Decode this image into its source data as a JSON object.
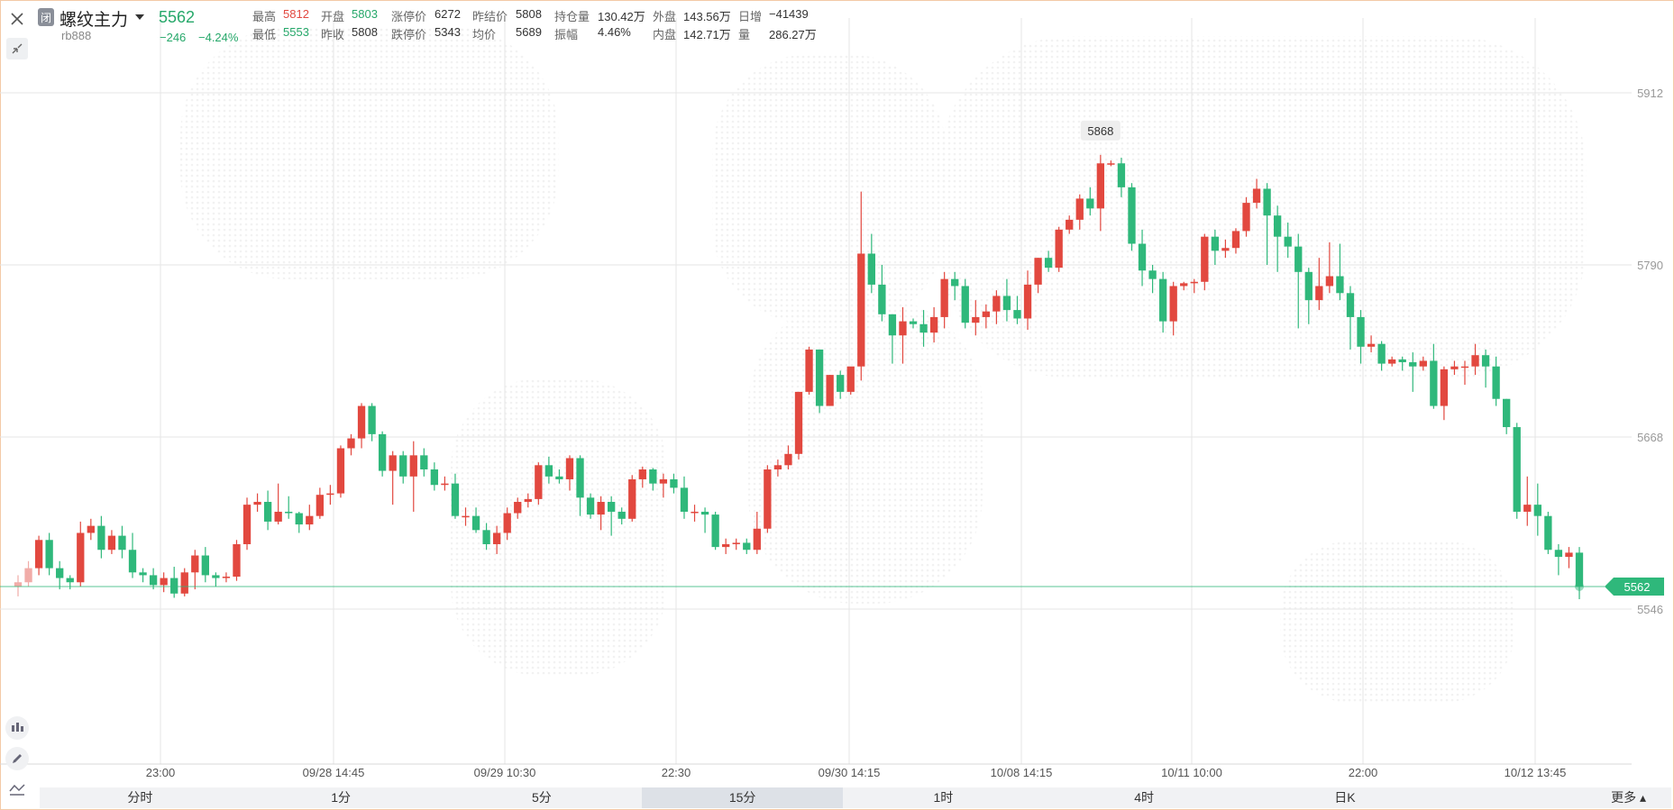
{
  "header": {
    "badge": "闭",
    "title": "螺纹主力",
    "code": "rb888",
    "price": "5562",
    "change": "−246",
    "change_pct": "−4.24%",
    "stats": [
      {
        "label": "最高",
        "value": "5812",
        "tone": "red"
      },
      {
        "label": "开盘",
        "value": "5803",
        "tone": "green"
      },
      {
        "label": "涨停价",
        "value": "6272",
        "tone": "normal"
      },
      {
        "label": "昨结价",
        "value": "5808",
        "tone": "normal"
      },
      {
        "label": "持仓量",
        "value": "130.42万",
        "tone": "normal"
      },
      {
        "label": "外盘",
        "value": "143.56万",
        "tone": "normal"
      },
      {
        "label": "日增",
        "value": "−41439",
        "tone": "normal"
      },
      {
        "label": "最低",
        "value": "5553",
        "tone": "green"
      },
      {
        "label": "昨收",
        "value": "5808",
        "tone": "normal"
      },
      {
        "label": "跌停价",
        "value": "5343",
        "tone": "normal"
      },
      {
        "label": "均价",
        "value": "5689",
        "tone": "normal"
      },
      {
        "label": "振幅",
        "value": "4.46%",
        "tone": "normal"
      },
      {
        "label": "内盘",
        "value": "142.71万",
        "tone": "normal"
      },
      {
        "label": "量",
        "value": "286.27万",
        "tone": "normal"
      }
    ]
  },
  "colors": {
    "up": "#e2483f",
    "down": "#2fb87b",
    "grid": "#e6e6e6",
    "axis_text": "#999999",
    "last_price": "#2fb87b"
  },
  "chart_data": {
    "type": "candlestick",
    "y_ticks": [
      5912,
      5790,
      5668,
      5546
    ],
    "x_ticks": [
      "23:00",
      "09/28 14:45",
      "09/29 10:30",
      "22:30",
      "09/30 14:15",
      "10/08 14:15",
      "10/11 10:00",
      "22:00",
      "10/12 13:45"
    ],
    "high_marker": "5868",
    "last_price": "5562",
    "candles": [
      [
        5562,
        5565,
        5555,
        5570
      ],
      [
        5565,
        5575,
        5562,
        5580
      ],
      [
        5575,
        5595,
        5570,
        5598
      ],
      [
        5595,
        5575,
        5570,
        5600
      ],
      [
        5575,
        5568,
        5560,
        5580
      ],
      [
        5568,
        5565,
        5560,
        5570
      ],
      [
        5565,
        5600,
        5562,
        5608
      ],
      [
        5600,
        5605,
        5595,
        5610
      ],
      [
        5605,
        5588,
        5582,
        5612
      ],
      [
        5588,
        5598,
        5585,
        5602
      ],
      [
        5598,
        5588,
        5582,
        5605
      ],
      [
        5588,
        5572,
        5568,
        5600
      ],
      [
        5572,
        5570,
        5565,
        5575
      ],
      [
        5570,
        5563,
        5560,
        5575
      ],
      [
        5563,
        5568,
        5558,
        5572
      ],
      [
        5568,
        5557,
        5554,
        5576
      ],
      [
        5557,
        5572,
        5555,
        5575
      ],
      [
        5572,
        5584,
        5560,
        5588
      ],
      [
        5584,
        5570,
        5565,
        5590
      ],
      [
        5570,
        5568,
        5562,
        5572
      ],
      [
        5568,
        5569,
        5565,
        5572
      ],
      [
        5569,
        5592,
        5566,
        5595
      ],
      [
        5592,
        5620,
        5588,
        5625
      ],
      [
        5620,
        5622,
        5615,
        5628
      ],
      [
        5622,
        5608,
        5602,
        5630
      ],
      [
        5608,
        5615,
        5606,
        5635
      ],
      [
        5615,
        5614,
        5610,
        5626
      ],
      [
        5614,
        5606,
        5600,
        5615
      ],
      [
        5606,
        5612,
        5602,
        5620
      ],
      [
        5612,
        5627,
        5610,
        5632
      ],
      [
        5627,
        5628,
        5620,
        5634
      ],
      [
        5628,
        5660,
        5625,
        5662
      ],
      [
        5660,
        5667,
        5655,
        5670
      ],
      [
        5667,
        5690,
        5660,
        5692
      ],
      [
        5690,
        5670,
        5665,
        5692
      ],
      [
        5670,
        5644,
        5640,
        5672
      ],
      [
        5644,
        5655,
        5620,
        5658
      ],
      [
        5655,
        5640,
        5635,
        5658
      ],
      [
        5640,
        5655,
        5615,
        5665
      ],
      [
        5655,
        5645,
        5640,
        5660
      ],
      [
        5645,
        5634,
        5630,
        5650
      ],
      [
        5634,
        5635,
        5630,
        5640
      ],
      [
        5635,
        5612,
        5610,
        5642
      ],
      [
        5612,
        5612,
        5605,
        5618
      ],
      [
        5612,
        5602,
        5600,
        5618
      ],
      [
        5602,
        5592,
        5588,
        5607
      ],
      [
        5592,
        5600,
        5585,
        5605
      ],
      [
        5600,
        5614,
        5595,
        5618
      ],
      [
        5614,
        5622,
        5610,
        5625
      ],
      [
        5622,
        5624,
        5618,
        5628
      ],
      [
        5624,
        5648,
        5620,
        5650
      ],
      [
        5648,
        5640,
        5635,
        5654
      ],
      [
        5640,
        5638,
        5635,
        5645
      ],
      [
        5638,
        5653,
        5630,
        5655
      ],
      [
        5653,
        5625,
        5612,
        5655
      ],
      [
        5625,
        5613,
        5610,
        5628
      ],
      [
        5613,
        5622,
        5602,
        5626
      ],
      [
        5622,
        5615,
        5598,
        5626
      ],
      [
        5615,
        5610,
        5606,
        5618
      ],
      [
        5610,
        5638,
        5608,
        5641
      ],
      [
        5638,
        5645,
        5632,
        5647
      ],
      [
        5645,
        5635,
        5630,
        5646
      ],
      [
        5635,
        5638,
        5625,
        5642
      ],
      [
        5638,
        5632,
        5628,
        5642
      ],
      [
        5632,
        5615,
        5610,
        5640
      ],
      [
        5615,
        5615,
        5608,
        5620
      ],
      [
        5615,
        5613,
        5600,
        5618
      ],
      [
        5613,
        5590,
        5588,
        5615
      ],
      [
        5590,
        5592,
        5585,
        5596
      ],
      [
        5592,
        5593,
        5588,
        5596
      ],
      [
        5593,
        5588,
        5585,
        5596
      ],
      [
        5588,
        5603,
        5585,
        5615
      ],
      [
        5603,
        5645,
        5600,
        5648
      ],
      [
        5645,
        5648,
        5640,
        5652
      ],
      [
        5648,
        5656,
        5645,
        5662
      ],
      [
        5656,
        5700,
        5652,
        5700
      ],
      [
        5700,
        5730,
        5698,
        5732
      ],
      [
        5730,
        5690,
        5685,
        5730
      ],
      [
        5690,
        5712,
        5690,
        5712
      ],
      [
        5712,
        5700,
        5695,
        5715
      ],
      [
        5700,
        5718,
        5698,
        5715
      ],
      [
        5718,
        5798,
        5708,
        5842
      ],
      [
        5798,
        5776,
        5770,
        5812
      ],
      [
        5776,
        5755,
        5750,
        5790
      ],
      [
        5755,
        5740,
        5720,
        5755
      ],
      [
        5740,
        5750,
        5720,
        5760
      ],
      [
        5750,
        5748,
        5745,
        5752
      ],
      [
        5748,
        5742,
        5732,
        5758
      ],
      [
        5742,
        5753,
        5735,
        5760
      ],
      [
        5753,
        5780,
        5745,
        5785
      ],
      [
        5780,
        5775,
        5765,
        5785
      ],
      [
        5775,
        5749,
        5745,
        5780
      ],
      [
        5749,
        5753,
        5740,
        5765
      ],
      [
        5753,
        5757,
        5745,
        5762
      ],
      [
        5757,
        5768,
        5748,
        5772
      ],
      [
        5768,
        5758,
        5750,
        5780
      ],
      [
        5758,
        5752,
        5748,
        5768
      ],
      [
        5752,
        5776,
        5744,
        5786
      ],
      [
        5776,
        5795,
        5770,
        5795
      ],
      [
        5795,
        5788,
        5785,
        5800
      ],
      [
        5788,
        5815,
        5785,
        5817
      ],
      [
        5815,
        5822,
        5812,
        5825
      ],
      [
        5822,
        5837,
        5815,
        5840
      ],
      [
        5837,
        5830,
        5825,
        5845
      ],
      [
        5830,
        5862,
        5814,
        5868
      ],
      [
        5862,
        5862,
        5860,
        5864
      ],
      [
        5862,
        5845,
        5838,
        5866
      ],
      [
        5845,
        5805,
        5800,
        5848
      ],
      [
        5805,
        5786,
        5775,
        5815
      ],
      [
        5786,
        5780,
        5770,
        5790
      ],
      [
        5780,
        5750,
        5742,
        5785
      ],
      [
        5750,
        5775,
        5740,
        5778
      ],
      [
        5775,
        5777,
        5772,
        5778
      ],
      [
        5777,
        5778,
        5770,
        5780
      ],
      [
        5778,
        5810,
        5772,
        5812
      ],
      [
        5810,
        5800,
        5790,
        5815
      ],
      [
        5800,
        5802,
        5795,
        5808
      ],
      [
        5802,
        5814,
        5798,
        5816
      ],
      [
        5814,
        5834,
        5810,
        5838
      ],
      [
        5834,
        5844,
        5830,
        5851
      ],
      [
        5844,
        5825,
        5790,
        5848
      ],
      [
        5825,
        5810,
        5785,
        5832
      ],
      [
        5810,
        5803,
        5795,
        5820
      ],
      [
        5803,
        5785,
        5745,
        5812
      ],
      [
        5785,
        5765,
        5748,
        5788
      ],
      [
        5765,
        5775,
        5758,
        5795
      ],
      [
        5775,
        5782,
        5770,
        5806
      ],
      [
        5782,
        5770,
        5765,
        5805
      ],
      [
        5770,
        5753,
        5730,
        5775
      ],
      [
        5753,
        5732,
        5720,
        5758
      ],
      [
        5732,
        5734,
        5728,
        5740
      ],
      [
        5734,
        5720,
        5715,
        5736
      ],
      [
        5720,
        5723,
        5718,
        5725
      ],
      [
        5723,
        5721,
        5715,
        5725
      ],
      [
        5721,
        5718,
        5700,
        5728
      ],
      [
        5718,
        5722,
        5715,
        5725
      ],
      [
        5722,
        5690,
        5688,
        5734
      ],
      [
        5690,
        5716,
        5680,
        5718
      ],
      [
        5716,
        5718,
        5712,
        5722
      ],
      [
        5718,
        5718,
        5705,
        5722
      ],
      [
        5718,
        5726,
        5712,
        5734
      ],
      [
        5726,
        5718,
        5703,
        5730
      ],
      [
        5718,
        5695,
        5690,
        5725
      ],
      [
        5695,
        5675,
        5670,
        5695
      ],
      [
        5675,
        5615,
        5610,
        5678
      ],
      [
        5615,
        5620,
        5605,
        5640
      ],
      [
        5620,
        5612,
        5598,
        5635
      ],
      [
        5612,
        5588,
        5585,
        5615
      ],
      [
        5588,
        5583,
        5570,
        5592
      ],
      [
        5583,
        5586,
        5575,
        5590
      ],
      [
        5586,
        5562,
        5553,
        5590
      ]
    ],
    "candle_width_factor": 0.72
  },
  "tabs": [
    "分时",
    "1分",
    "5分",
    "15分",
    "1时",
    "4时",
    "日K",
    "更多"
  ],
  "active_tab": "15分"
}
